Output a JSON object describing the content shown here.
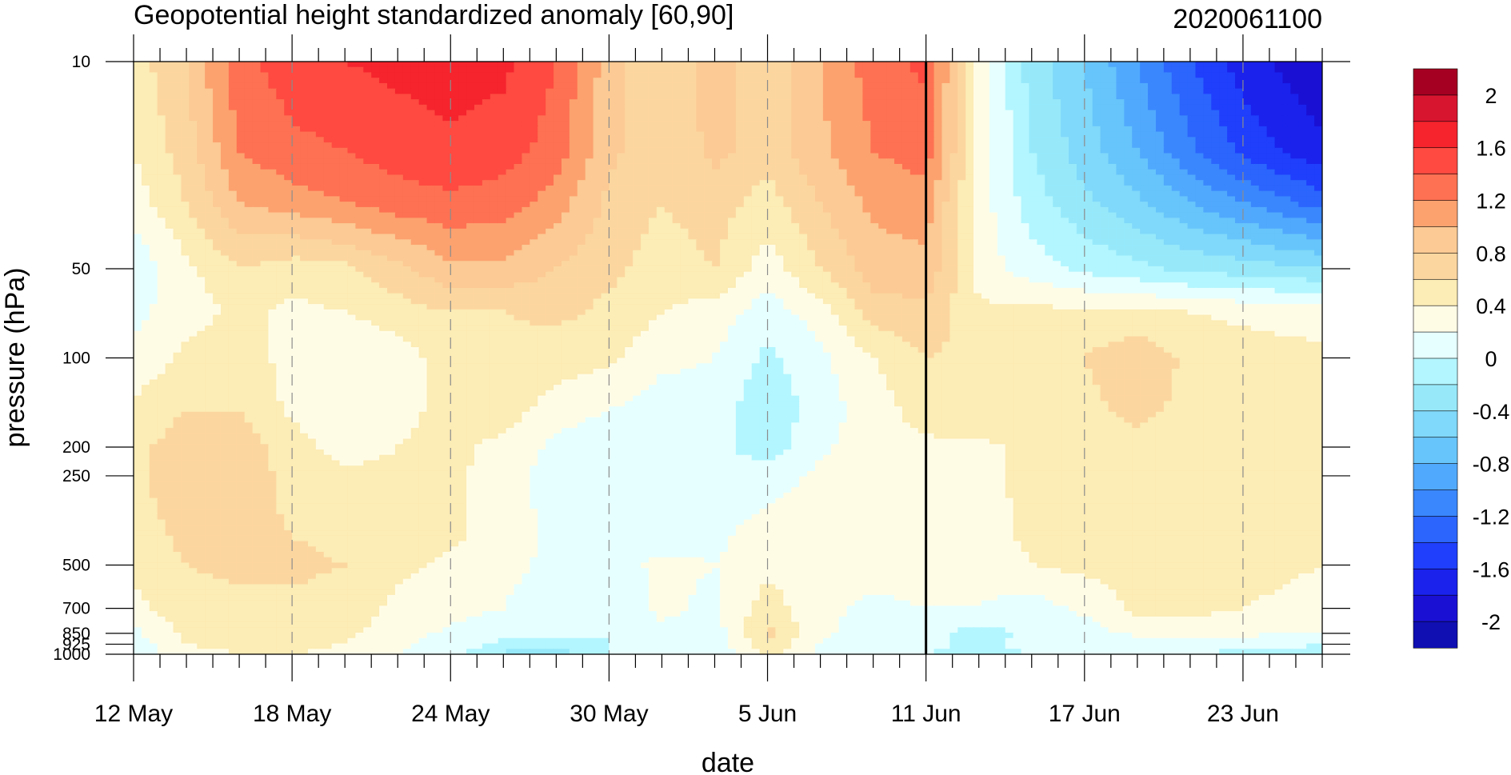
{
  "chart_data": {
    "type": "heatmap",
    "title": "Geopotential height standardized anomaly [60,90]",
    "date_label": "2020061100",
    "xlabel": "date",
    "ylabel": "pressure (hPa)",
    "x_range": [
      "12 May",
      "26 Jun"
    ],
    "x_tick_labels": [
      "12 May",
      "18 May",
      "24 May",
      "30 May",
      "5 Jun",
      "11 Jun",
      "17 Jun",
      "23 Jun"
    ],
    "x_tick_days": [
      0,
      6,
      12,
      18,
      24,
      30,
      36,
      42
    ],
    "x_end_day": 45,
    "current_day": 30,
    "y_scale": "log",
    "y_range": [
      1000,
      10
    ],
    "y_tick_labels": [
      "10",
      "50",
      "100",
      "200",
      "250",
      "500",
      "700",
      "850",
      "925",
      "1000"
    ],
    "y_tick_values": [
      10,
      50,
      100,
      200,
      250,
      500,
      700,
      850,
      925,
      1000
    ],
    "colorbar": {
      "labels": [
        "2",
        "1.6",
        "1.2",
        "0.8",
        "0.4",
        "0",
        "-0.4",
        "-0.8",
        "-1.2",
        "-1.6",
        "-2"
      ],
      "label_values": [
        2,
        1.6,
        1.2,
        0.8,
        0.4,
        0,
        -0.4,
        -0.8,
        -1.2,
        -1.6,
        -2
      ],
      "levels": [
        2.2,
        2.0,
        1.8,
        1.6,
        1.4,
        1.2,
        1.0,
        0.8,
        0.6,
        0.4,
        0.2,
        0.0,
        -0.2,
        -0.4,
        -0.6,
        -0.8,
        -1.0,
        -1.2,
        -1.4,
        -1.6,
        -1.8,
        -2.0,
        -2.2
      ],
      "colors": [
        "#a50021",
        "#d8152f",
        "#f5242d",
        "#fe4a41",
        "#fe7152",
        "#fca26f",
        "#fcca94",
        "#fcd69f",
        "#fcecb5",
        "#fffce6",
        "#e6ffff",
        "#b3f6ff",
        "#97e9fa",
        "#80d8fa",
        "#67c5fb",
        "#51a9fd",
        "#3a87fd",
        "#2b65fd",
        "#1f3ffc",
        "#1a22ec",
        "#1a10d4",
        "#0f0fb2"
      ]
    },
    "values_note": "",
    "days": [
      0,
      2,
      4,
      6,
      8,
      10,
      12,
      14,
      16,
      18,
      20,
      22,
      24,
      26,
      28,
      30,
      32,
      34,
      36,
      38,
      40,
      42,
      45
    ],
    "pressures": [
      10,
      20,
      30,
      50,
      70,
      100,
      150,
      200,
      250,
      400,
      500,
      700,
      850,
      925,
      1000
    ],
    "values": [
      [
        0.5,
        0.8,
        1.35,
        1.5,
        1.6,
        1.65,
        1.7,
        1.65,
        1.4,
        0.9,
        0.6,
        0.9,
        0.65,
        1.0,
        1.3,
        1.45,
        0.3,
        -0.3,
        -0.6,
        -1.0,
        -1.4,
        -1.7,
        -2.0
      ],
      [
        0.4,
        0.7,
        1.2,
        1.35,
        1.4,
        1.5,
        1.55,
        1.5,
        1.3,
        0.85,
        0.65,
        0.85,
        0.7,
        0.95,
        1.2,
        1.3,
        0.35,
        -0.2,
        -0.5,
        -0.8,
        -1.15,
        -1.45,
        -1.75
      ],
      [
        0.3,
        0.6,
        1.0,
        1.1,
        1.2,
        1.3,
        1.35,
        1.3,
        1.1,
        0.75,
        0.6,
        0.7,
        0.5,
        0.8,
        1.05,
        1.1,
        0.3,
        -0.1,
        -0.35,
        -0.55,
        -0.8,
        -1.0,
        -1.3
      ],
      [
        0.05,
        0.35,
        0.6,
        0.5,
        0.55,
        0.75,
        0.95,
        0.95,
        0.8,
        0.65,
        0.5,
        0.6,
        0.3,
        0.6,
        0.9,
        0.95,
        0.3,
        0.1,
        -0.05,
        -0.15,
        -0.25,
        -0.3,
        -0.4
      ],
      [
        0.15,
        0.3,
        0.45,
        0.35,
        0.4,
        0.5,
        0.6,
        0.6,
        0.65,
        0.55,
        0.4,
        0.3,
        0.1,
        0.3,
        0.7,
        0.75,
        0.45,
        0.45,
        0.45,
        0.45,
        0.4,
        0.35,
        0.3
      ],
      [
        0.25,
        0.45,
        0.55,
        0.3,
        0.2,
        0.3,
        0.5,
        0.55,
        0.5,
        0.45,
        0.25,
        0.2,
        -0.05,
        0.15,
        0.4,
        0.6,
        0.55,
        0.6,
        0.6,
        0.75,
        0.55,
        0.5,
        0.45
      ],
      [
        0.45,
        0.6,
        0.6,
        0.35,
        0.25,
        0.35,
        0.45,
        0.5,
        0.3,
        0.2,
        0.1,
        0.1,
        -0.15,
        0.1,
        0.3,
        0.5,
        0.6,
        0.55,
        0.55,
        0.65,
        0.55,
        0.5,
        0.45
      ],
      [
        0.55,
        0.7,
        0.7,
        0.5,
        0.3,
        0.4,
        0.45,
        0.35,
        0.15,
        0.05,
        0.05,
        0.05,
        -0.1,
        0.15,
        0.35,
        0.35,
        0.35,
        0.45,
        0.5,
        0.55,
        0.5,
        0.5,
        0.45
      ],
      [
        0.55,
        0.75,
        0.7,
        0.55,
        0.45,
        0.45,
        0.45,
        0.3,
        0.1,
        0.05,
        0.05,
        0.05,
        0.1,
        0.25,
        0.35,
        0.35,
        0.35,
        0.45,
        0.5,
        0.55,
        0.55,
        0.5,
        0.45
      ],
      [
        0.5,
        0.65,
        0.65,
        0.6,
        0.55,
        0.5,
        0.45,
        0.3,
        0.15,
        0.1,
        0.1,
        0.15,
        0.3,
        0.35,
        0.35,
        0.35,
        0.3,
        0.45,
        0.5,
        0.55,
        0.55,
        0.5,
        0.45
      ],
      [
        0.45,
        0.6,
        0.65,
        0.65,
        0.6,
        0.45,
        0.35,
        0.25,
        0.15,
        0.1,
        0.25,
        0.2,
        0.35,
        0.35,
        0.3,
        0.3,
        0.25,
        0.4,
        0.45,
        0.5,
        0.5,
        0.45,
        0.4
      ],
      [
        0.35,
        0.5,
        0.55,
        0.55,
        0.5,
        0.35,
        0.3,
        0.2,
        0.1,
        0.05,
        0.25,
        0.15,
        0.5,
        0.25,
        0.15,
        0.2,
        0.2,
        0.1,
        0.25,
        0.45,
        0.45,
        0.4,
        0.35
      ],
      [
        0.15,
        0.45,
        0.5,
        0.5,
        0.45,
        0.3,
        0.15,
        0.05,
        0.05,
        0.0,
        0.15,
        0.1,
        0.65,
        0.25,
        0.1,
        0.1,
        -0.1,
        0.05,
        0.1,
        0.25,
        0.3,
        0.25,
        0.2
      ],
      [
        0.1,
        0.4,
        0.45,
        0.45,
        0.4,
        0.25,
        0.1,
        -0.05,
        -0.15,
        0.0,
        0.1,
        0.05,
        0.55,
        0.2,
        0.05,
        0.05,
        -0.05,
        0.05,
        0.05,
        0.1,
        0.1,
        0.05,
        0.0
      ],
      [
        0.0,
        0.35,
        0.4,
        0.4,
        0.35,
        0.2,
        0.1,
        -0.25,
        -0.3,
        0.0,
        0.05,
        0.05,
        0.45,
        0.15,
        0.0,
        0.0,
        -0.05,
        0.0,
        0.0,
        0.05,
        0.0,
        -0.05,
        -0.05
      ]
    ]
  }
}
